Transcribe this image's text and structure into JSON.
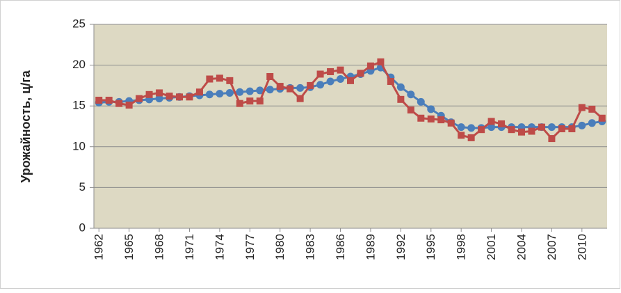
{
  "chart_data": {
    "type": "line",
    "y_label": "Урожайность, ц/га",
    "x": [
      1962,
      1963,
      1964,
      1965,
      1966,
      1967,
      1968,
      1969,
      1970,
      1971,
      1972,
      1973,
      1974,
      1975,
      1976,
      1977,
      1978,
      1979,
      1980,
      1981,
      1982,
      1983,
      1984,
      1985,
      1986,
      1987,
      1988,
      1989,
      1990,
      1991,
      1992,
      1993,
      1994,
      1995,
      1996,
      1997,
      1998,
      1999,
      2000,
      2001,
      2002,
      2003,
      2004,
      2005,
      2006,
      2007,
      2008,
      2009,
      2010,
      2011,
      2012
    ],
    "xlim": [
      1961.5,
      2012.5
    ],
    "xticks": [
      1962,
      1965,
      1968,
      1971,
      1974,
      1977,
      1980,
      1983,
      1986,
      1989,
      1992,
      1995,
      1998,
      2001,
      2004,
      2007,
      2010
    ],
    "ylim": [
      0,
      25
    ],
    "yticks": [
      0,
      5,
      10,
      15,
      20,
      25
    ],
    "grid": true,
    "series": [
      {
        "color": "#4a7ebb",
        "marker": "circle",
        "values": [
          15.4,
          15.5,
          15.5,
          15.6,
          15.7,
          15.8,
          15.9,
          16.0,
          16.1,
          16.2,
          16.3,
          16.4,
          16.5,
          16.6,
          16.7,
          16.8,
          16.9,
          17.0,
          17.1,
          17.2,
          17.2,
          17.3,
          17.6,
          18.0,
          18.3,
          18.6,
          18.9,
          19.3,
          19.7,
          18.5,
          17.3,
          16.4,
          15.5,
          14.6,
          13.8,
          13.0,
          12.4,
          12.3,
          12.3,
          12.4,
          12.4,
          12.4,
          12.4,
          12.4,
          12.4,
          12.4,
          12.4,
          12.4,
          12.6,
          12.9,
          13.1
        ]
      },
      {
        "color": "#be4b48",
        "marker": "square",
        "values": [
          15.7,
          15.7,
          15.3,
          15.1,
          15.9,
          16.4,
          16.6,
          16.2,
          16.1,
          16.1,
          16.7,
          18.3,
          18.4,
          18.1,
          15.3,
          15.6,
          15.6,
          18.6,
          17.4,
          17.1,
          15.9,
          17.5,
          18.9,
          19.2,
          19.4,
          18.1,
          19.0,
          19.9,
          20.4,
          18.0,
          15.8,
          14.5,
          13.5,
          13.4,
          13.3,
          12.9,
          11.4,
          11.1,
          12.1,
          13.1,
          12.8,
          12.1,
          11.8,
          11.9,
          12.4,
          11.0,
          12.2,
          12.2,
          14.8,
          14.6,
          13.5
        ]
      }
    ]
  }
}
